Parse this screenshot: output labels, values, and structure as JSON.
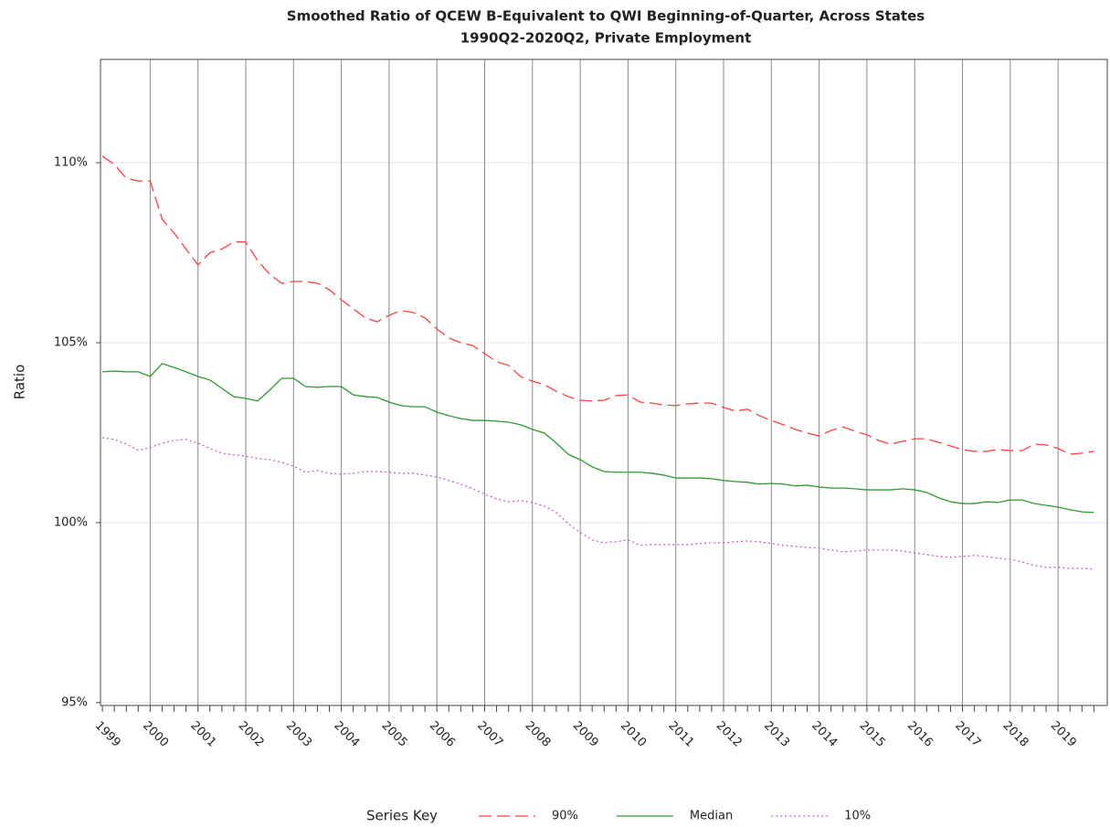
{
  "chart_data": {
    "type": "line",
    "title": "Smoothed Ratio of QCEW B-Equivalent to QWI Beginning-of-Quarter, Across States",
    "subtitle": "1990Q2-2020Q2, Private Employment",
    "ylabel": "Ratio",
    "legend_title": "Series Key",
    "legend_position": "bottom",
    "grid": true,
    "xgrid": true,
    "xlim": [
      1998.96,
      2020.03
    ],
    "ylim": [
      94.92,
      112.87
    ],
    "xticks": [
      1999,
      2000,
      2001,
      2002,
      2003,
      2004,
      2005,
      2006,
      2007,
      2008,
      2009,
      2010,
      2011,
      2012,
      2013,
      2014,
      2015,
      2016,
      2017,
      2018,
      2019
    ],
    "yticks": [
      {
        "value": 95,
        "label": "95%"
      },
      {
        "value": 100,
        "label": "100%"
      },
      {
        "value": 105,
        "label": "105%"
      },
      {
        "value": 110,
        "label": "110%"
      }
    ],
    "x": [
      1999,
      1999.25,
      1999.5,
      1999.75,
      2000,
      2000.25,
      2000.5,
      2000.75,
      2001,
      2001.25,
      2001.5,
      2001.75,
      2002,
      2002.25,
      2002.5,
      2002.75,
      2003,
      2003.25,
      2003.5,
      2003.75,
      2004,
      2004.25,
      2004.5,
      2004.75,
      2005,
      2005.25,
      2005.5,
      2005.75,
      2006,
      2006.25,
      2006.5,
      2006.75,
      2007,
      2007.25,
      2007.5,
      2007.75,
      2008,
      2008.25,
      2008.5,
      2008.75,
      2009,
      2009.25,
      2009.5,
      2009.75,
      2010,
      2010.25,
      2010.5,
      2010.75,
      2011,
      2011.25,
      2011.5,
      2011.75,
      2012,
      2012.25,
      2012.5,
      2012.75,
      2013,
      2013.25,
      2013.5,
      2013.75,
      2014,
      2014.25,
      2014.5,
      2014.75,
      2015,
      2015.25,
      2015.5,
      2015.75,
      2016,
      2016.25,
      2016.5,
      2016.75,
      2017,
      2017.25,
      2017.5,
      2017.75,
      2018,
      2018.25,
      2018.5,
      2018.75,
      2019,
      2019.25,
      2019.5,
      2019.75
    ],
    "series": [
      {
        "name": "90%",
        "color": "#ff4040",
        "dash": "dashed",
        "values": [
          110.18,
          109.95,
          109.57,
          109.49,
          109.49,
          108.43,
          108.05,
          107.6,
          107.16,
          107.5,
          107.6,
          107.8,
          107.8,
          107.28,
          106.9,
          106.65,
          106.7,
          106.7,
          106.65,
          106.47,
          106.19,
          105.94,
          105.69,
          105.58,
          105.76,
          105.89,
          105.84,
          105.69,
          105.38,
          105.13,
          105.0,
          104.92,
          104.7,
          104.47,
          104.37,
          104.06,
          103.93,
          103.83,
          103.65,
          103.5,
          103.4,
          103.38,
          103.4,
          103.53,
          103.55,
          103.35,
          103.32,
          103.27,
          103.25,
          103.3,
          103.32,
          103.32,
          103.2,
          103.1,
          103.15,
          102.97,
          102.84,
          102.72,
          102.59,
          102.49,
          102.41,
          102.56,
          102.66,
          102.54,
          102.44,
          102.28,
          102.18,
          102.26,
          102.33,
          102.33,
          102.23,
          102.13,
          102.03,
          101.98,
          101.98,
          102.03,
          102.0,
          102.0,
          102.18,
          102.16,
          102.06,
          101.9,
          101.93,
          101.98
        ]
      },
      {
        "name": "Median",
        "color": "#2e9a2e",
        "dash": "solid",
        "values": [
          104.19,
          104.21,
          104.19,
          104.19,
          104.06,
          104.42,
          104.31,
          104.19,
          104.06,
          103.96,
          103.73,
          103.5,
          103.45,
          103.38,
          103.68,
          104.01,
          104.01,
          103.78,
          103.76,
          103.78,
          103.78,
          103.55,
          103.5,
          103.48,
          103.35,
          103.25,
          103.22,
          103.22,
          103.07,
          102.97,
          102.89,
          102.84,
          102.84,
          102.82,
          102.79,
          102.72,
          102.59,
          102.49,
          102.21,
          101.9,
          101.75,
          101.55,
          101.42,
          101.4,
          101.4,
          101.4,
          101.37,
          101.32,
          101.24,
          101.24,
          101.24,
          101.22,
          101.17,
          101.14,
          101.12,
          101.07,
          101.09,
          101.07,
          101.02,
          101.04,
          100.99,
          100.96,
          100.96,
          100.94,
          100.91,
          100.91,
          100.91,
          100.94,
          100.91,
          100.84,
          100.69,
          100.58,
          100.53,
          100.53,
          100.58,
          100.56,
          100.63,
          100.63,
          100.53,
          100.48,
          100.43,
          100.36,
          100.3,
          100.28
        ]
      },
      {
        "name": "10%",
        "color": "#c85ec8",
        "dash": "dotted",
        "values": [
          102.36,
          102.31,
          102.18,
          102.01,
          102.08,
          102.21,
          102.28,
          102.31,
          102.21,
          102.06,
          101.93,
          101.88,
          101.85,
          101.78,
          101.75,
          101.68,
          101.57,
          101.4,
          101.45,
          101.37,
          101.35,
          101.37,
          101.42,
          101.42,
          101.4,
          101.37,
          101.37,
          101.32,
          101.27,
          101.17,
          101.07,
          100.94,
          100.79,
          100.66,
          100.58,
          100.61,
          100.56,
          100.46,
          100.28,
          99.97,
          99.72,
          99.52,
          99.44,
          99.47,
          99.52,
          99.37,
          99.39,
          99.39,
          99.39,
          99.39,
          99.42,
          99.44,
          99.44,
          99.47,
          99.49,
          99.47,
          99.42,
          99.37,
          99.34,
          99.31,
          99.29,
          99.24,
          99.19,
          99.21,
          99.24,
          99.24,
          99.24,
          99.21,
          99.16,
          99.11,
          99.06,
          99.04,
          99.06,
          99.09,
          99.06,
          99.01,
          98.98,
          98.91,
          98.81,
          98.76,
          98.76,
          98.73,
          98.73,
          98.71
        ]
      }
    ]
  }
}
